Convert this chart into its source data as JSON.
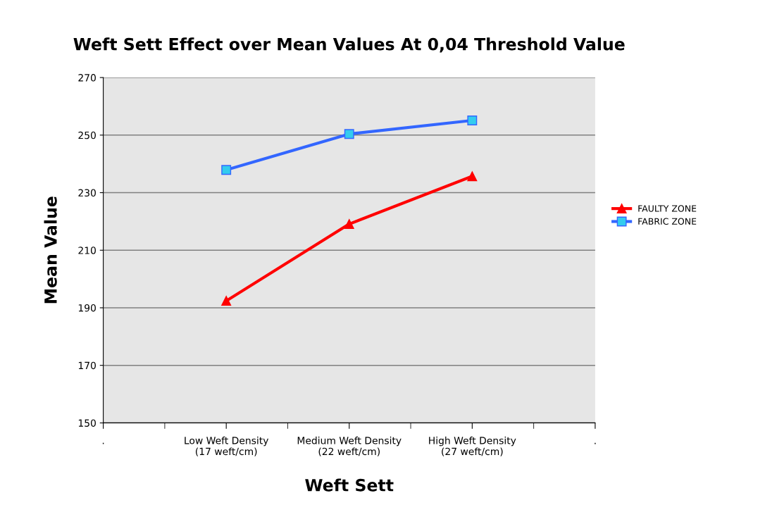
{
  "chart_data": {
    "type": "line",
    "title": "Weft Sett Effect over Mean Values At 0,04 Threshold Value",
    "xlabel": "Weft Sett",
    "ylabel": "Mean Value",
    "categories": [
      ".",
      "Low Weft Density\n(17 weft/cm)",
      "Medium Weft Density\n(22 weft/cm)",
      "High Weft Density\n(27 weft/cm)",
      "."
    ],
    "series": [
      {
        "name": "FAULTY ZONE",
        "color": "#ff0000",
        "marker": "triangle",
        "values": [
          null,
          192.4,
          219.1,
          235.7,
          null
        ]
      },
      {
        "name": "FABRIC ZONE",
        "color": "#3366ff",
        "marker": "square",
        "values": [
          null,
          237.9,
          250.4,
          255.1,
          null
        ]
      }
    ],
    "ylim": [
      150,
      270
    ],
    "yticks": [
      150,
      170,
      190,
      210,
      230,
      250,
      270
    ],
    "grid": "y",
    "legend": "right",
    "line_style": "solid"
  }
}
